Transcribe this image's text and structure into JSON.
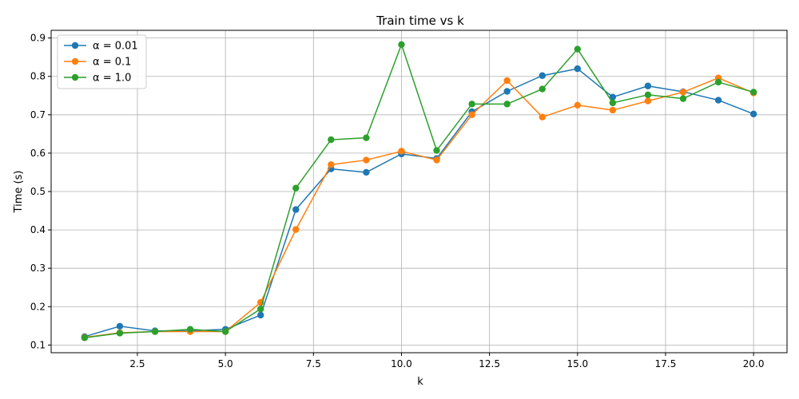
{
  "chart_data": {
    "type": "line",
    "title": "Train time vs k",
    "xlabel": "k",
    "ylabel": "Time (s)",
    "xlim": [
      0.05,
      20.95
    ],
    "ylim": [
      0.08,
      0.92
    ],
    "xticks": [
      2.5,
      5.0,
      7.5,
      10.0,
      12.5,
      15.0,
      17.5,
      20.0
    ],
    "xtick_labels": [
      "2.5",
      "5.0",
      "7.5",
      "10.0",
      "12.5",
      "15.0",
      "17.5",
      "20.0"
    ],
    "yticks": [
      0.1,
      0.2,
      0.3,
      0.4,
      0.5,
      0.6,
      0.7,
      0.8,
      0.9
    ],
    "ytick_labels": [
      "0.1",
      "0.2",
      "0.3",
      "0.4",
      "0.5",
      "0.6",
      "0.7",
      "0.8",
      "0.9"
    ],
    "grid": true,
    "legend_position": "top-left",
    "x": [
      1,
      2,
      3,
      4,
      5,
      6,
      7,
      8,
      9,
      10,
      11,
      12,
      13,
      14,
      15,
      16,
      17,
      18,
      19,
      20
    ],
    "series": [
      {
        "name": "α = 0.01",
        "color": "#1f77b4",
        "values": [
          0.122,
          0.149,
          0.137,
          0.137,
          0.141,
          0.178,
          0.453,
          0.559,
          0.55,
          0.598,
          0.586,
          0.708,
          0.761,
          0.802,
          0.82,
          0.746,
          0.775,
          0.76,
          0.738,
          0.702
        ]
      },
      {
        "name": "α = 0.1",
        "color": "#ff7f0e",
        "values": [
          0.12,
          0.132,
          0.135,
          0.135,
          0.135,
          0.211,
          0.401,
          0.57,
          0.582,
          0.605,
          0.582,
          0.7,
          0.789,
          0.694,
          0.725,
          0.712,
          0.736,
          0.759,
          0.796,
          0.757
        ]
      },
      {
        "name": "α = 1.0",
        "color": "#2ca02c",
        "values": [
          0.119,
          0.131,
          0.135,
          0.141,
          0.135,
          0.194,
          0.509,
          0.635,
          0.64,
          0.883,
          0.607,
          0.728,
          0.728,
          0.767,
          0.871,
          0.731,
          0.752,
          0.742,
          0.785,
          0.759
        ]
      }
    ]
  }
}
